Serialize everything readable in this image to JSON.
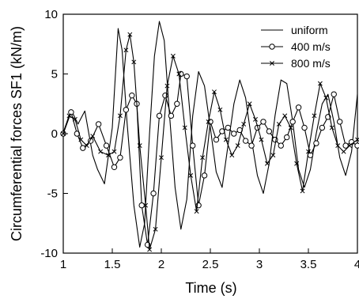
{
  "chart_data": {
    "type": "line",
    "xlabel": "Time (s)",
    "ylabel": "Circumferential forces SF1 (kN/m)",
    "xlim": [
      1,
      4
    ],
    "ylim": [
      -10,
      10
    ],
    "xticks": [
      "1",
      "1.5",
      "2",
      "2.5",
      "3",
      "3.5",
      "4"
    ],
    "xtick_values": [
      1,
      1.5,
      2,
      2.5,
      3,
      3.5,
      4
    ],
    "yticks": [
      "10",
      "5",
      "0",
      "-5",
      "-10"
    ],
    "ytick_values": [
      10,
      5,
      0,
      -5,
      -10
    ],
    "grid": false,
    "legend_position": "top-right",
    "series": [
      {
        "name": "uniform",
        "marker": "none",
        "x": [
          1.0,
          1.08,
          1.15,
          1.22,
          1.3,
          1.35,
          1.42,
          1.5,
          1.56,
          1.6,
          1.65,
          1.72,
          1.78,
          1.83,
          1.88,
          1.93,
          1.98,
          2.03,
          2.08,
          2.14,
          2.2,
          2.26,
          2.32,
          2.38,
          2.44,
          2.5,
          2.56,
          2.62,
          2.68,
          2.74,
          2.8,
          2.86,
          2.92,
          2.98,
          3.04,
          3.1,
          3.16,
          3.22,
          3.28,
          3.34,
          3.4,
          3.46,
          3.52,
          3.58,
          3.64,
          3.7,
          3.76,
          3.82,
          3.88,
          3.94,
          4.0
        ],
        "y": [
          0.1,
          2.0,
          0.8,
          1.9,
          -1.8,
          -3.0,
          -4.2,
          0.5,
          8.8,
          7.0,
          1.0,
          -6.0,
          -9.5,
          -7.5,
          0.0,
          6.5,
          9.4,
          7.8,
          2.0,
          -4.5,
          -8.0,
          -5.5,
          1.5,
          5.2,
          4.0,
          0.5,
          -3.2,
          -4.5,
          -1.0,
          2.5,
          4.5,
          3.0,
          -0.5,
          -3.5,
          -5.0,
          -2.5,
          1.5,
          4.5,
          4.2,
          1.0,
          -3.0,
          -4.5,
          -3.0,
          0.0,
          2.5,
          3.3,
          1.0,
          -2.0,
          -3.5,
          -1.5,
          3.3
        ]
      },
      {
        "name": "400 m/s",
        "marker": "circle",
        "x": [
          1.0,
          1.08,
          1.14,
          1.2,
          1.28,
          1.36,
          1.44,
          1.52,
          1.58,
          1.64,
          1.7,
          1.75,
          1.8,
          1.86,
          1.92,
          1.98,
          2.04,
          2.1,
          2.16,
          2.2,
          2.26,
          2.32,
          2.38,
          2.44,
          2.5,
          2.56,
          2.62,
          2.68,
          2.74,
          2.8,
          2.86,
          2.92,
          2.98,
          3.04,
          3.1,
          3.16,
          3.22,
          3.28,
          3.34,
          3.4,
          3.46,
          3.52,
          3.58,
          3.64,
          3.7,
          3.76,
          3.82,
          3.88,
          3.94,
          4.0
        ],
        "y": [
          0.0,
          1.8,
          0.0,
          -1.2,
          -0.6,
          0.8,
          -1.0,
          -2.8,
          -2.0,
          2.0,
          3.2,
          2.5,
          -6.0,
          -9.3,
          -5.0,
          1.5,
          3.2,
          1.5,
          2.5,
          5.0,
          4.8,
          -1.0,
          -6.0,
          -3.5,
          1.0,
          -0.5,
          0.2,
          0.5,
          0.0,
          0.3,
          -0.6,
          -1.0,
          0.5,
          1.0,
          0.2,
          -0.5,
          -1.0,
          -0.3,
          1.0,
          2.2,
          0.5,
          -1.8,
          -0.8,
          0.5,
          1.4,
          3.3,
          1.0,
          -1.0,
          -0.7,
          -1.0
        ]
      },
      {
        "name": "800 m/s",
        "marker": "x",
        "x": [
          1.0,
          1.06,
          1.12,
          1.18,
          1.24,
          1.3,
          1.38,
          1.46,
          1.52,
          1.58,
          1.64,
          1.68,
          1.72,
          1.78,
          1.84,
          1.88,
          1.94,
          2.0,
          2.06,
          2.12,
          2.18,
          2.24,
          2.3,
          2.36,
          2.42,
          2.48,
          2.54,
          2.6,
          2.66,
          2.72,
          2.78,
          2.84,
          2.9,
          2.96,
          3.02,
          3.08,
          3.14,
          3.2,
          3.26,
          3.32,
          3.38,
          3.44,
          3.5,
          3.56,
          3.62,
          3.68,
          3.74,
          3.8,
          3.86,
          3.92,
          4.0
        ],
        "y": [
          0.0,
          1.5,
          1.2,
          -0.5,
          -1.0,
          -0.2,
          -1.5,
          -1.8,
          -1.5,
          1.5,
          7.0,
          8.3,
          6.0,
          -1.0,
          -6.0,
          -9.7,
          -8.0,
          -2.0,
          4.0,
          6.5,
          5.0,
          0.5,
          -3.5,
          -6.5,
          -2.0,
          1.0,
          3.5,
          2.0,
          -0.5,
          -1.8,
          -1.0,
          0.8,
          2.5,
          1.2,
          -0.5,
          -2.5,
          -1.8,
          0.8,
          1.5,
          0.5,
          -2.5,
          -4.8,
          -1.5,
          1.5,
          4.2,
          3.0,
          0.5,
          -1.0,
          -1.5,
          -1.0,
          -0.5
        ]
      }
    ]
  }
}
